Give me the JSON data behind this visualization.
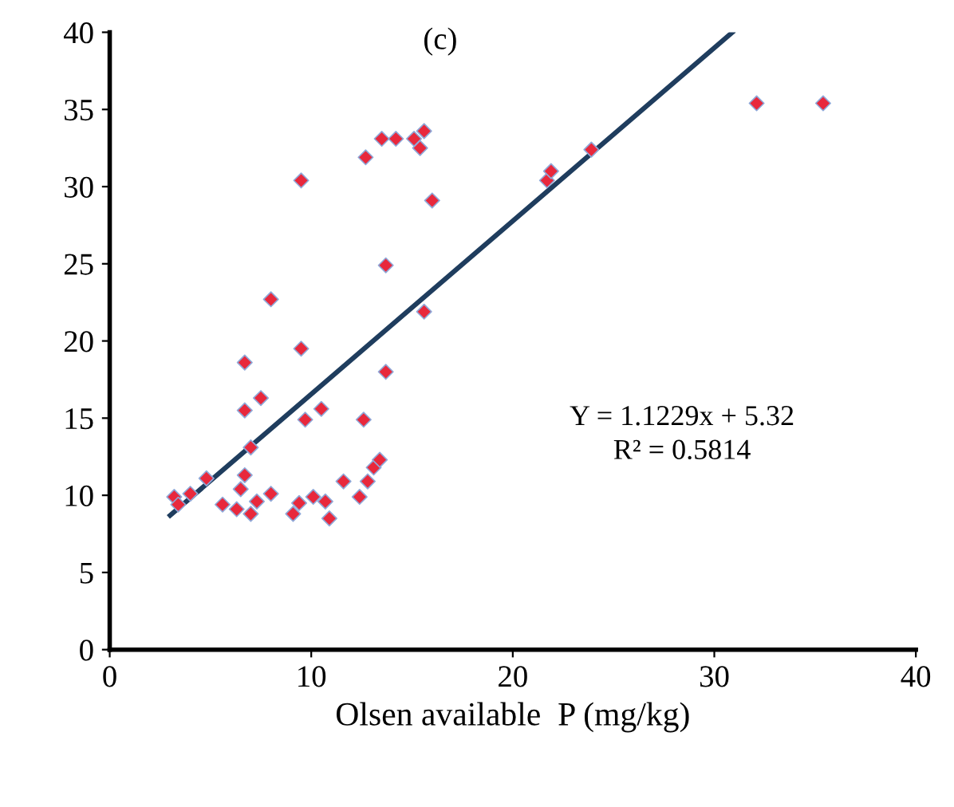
{
  "chart_data": {
    "type": "scatter",
    "xlabel": "Olsen available  P (mg/kg)",
    "annotations": [
      "(c)",
      "Y = 1.1229x + 5.32",
      "R² = 0.5814"
    ],
    "xlim": [
      0,
      40
    ],
    "ylim": [
      0,
      40
    ],
    "xticks": [
      0,
      10,
      20,
      30,
      40
    ],
    "yticks": [
      0,
      5,
      10,
      15,
      20,
      25,
      30,
      35,
      40
    ],
    "grid": false,
    "legend": false,
    "series": [
      {
        "marker": "diamond",
        "color": "#e8283c",
        "x": [
          3.2,
          3.4,
          4.0,
          4.8,
          5.6,
          6.3,
          6.5,
          6.7,
          7.0,
          6.7,
          7.5,
          6.7,
          8.0,
          9.5,
          7.0,
          7.3,
          8.0,
          9.1,
          9.4,
          10.1,
          10.7,
          10.9,
          9.7,
          10.5,
          9.5,
          11.6,
          12.4,
          12.8,
          12.6,
          13.1,
          13.4,
          13.7,
          13.7,
          12.7,
          13.5,
          14.2,
          15.1,
          15.4,
          15.6,
          16.0,
          15.6,
          21.7,
          21.9,
          23.9,
          32.1,
          35.4
        ],
        "values": [
          9.9,
          9.4,
          10.1,
          11.1,
          9.4,
          9.1,
          10.4,
          11.3,
          13.1,
          15.5,
          16.3,
          18.6,
          22.7,
          30.4,
          8.8,
          9.6,
          10.1,
          8.8,
          9.5,
          9.9,
          9.6,
          8.5,
          14.9,
          15.6,
          19.5,
          10.9,
          9.9,
          10.9,
          14.9,
          11.8,
          12.3,
          18.0,
          24.9,
          31.9,
          33.1,
          33.1,
          33.1,
          32.5,
          33.6,
          29.1,
          21.9,
          30.4,
          31.0,
          32.4,
          35.4,
          35.4
        ]
      },
      {
        "type": "line",
        "color": "#1f3d5e",
        "x": [
          3.0,
          30.9
        ],
        "values": [
          8.7,
          40.0
        ]
      }
    ]
  }
}
